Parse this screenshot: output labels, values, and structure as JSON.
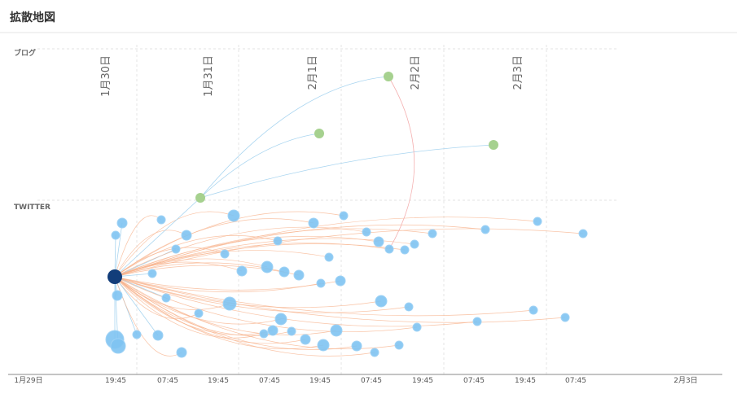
{
  "header": {
    "title": "拡散地図"
  },
  "lanes": [
    "ブログ",
    "TWITTER"
  ],
  "date_labels": [
    "1月30日",
    "1月31日",
    "2月1日",
    "2月2日",
    "2月3日"
  ],
  "x_axis": [
    "1月29日",
    "19:45",
    "07:45",
    "19:45",
    "07:45",
    "19:45",
    "07:45",
    "19:45",
    "07:45",
    "19:45",
    "07:45",
    "2月3日"
  ]
}
